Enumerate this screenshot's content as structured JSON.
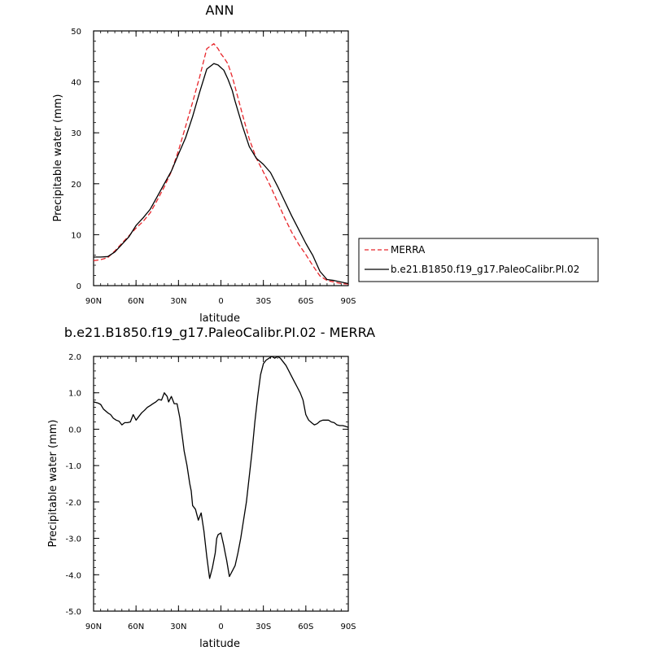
{
  "chart_data": [
    {
      "type": "line",
      "title": "ANN",
      "xlabel": "latitude",
      "ylabel": "Precipitable water (mm)",
      "xlim": [
        90,
        -90
      ],
      "ylim": [
        0,
        50
      ],
      "xticks": [
        90,
        60,
        30,
        0,
        -30,
        -60,
        -90
      ],
      "xtick_labels": [
        "90N",
        "60N",
        "30N",
        "0",
        "30S",
        "60S",
        "90S"
      ],
      "yticks": [
        0,
        10,
        20,
        30,
        40,
        50
      ],
      "ytick_labels": [
        "0",
        "10",
        "20",
        "30",
        "40",
        "50"
      ],
      "legend": {
        "placement": "right",
        "entries": [
          "MERRA",
          "b.e21.B1850.f19_g17.PaleoCalibr.PI.02"
        ]
      },
      "series": [
        {
          "name": "MERRA",
          "color": "#e8262b",
          "dash": "dashed",
          "x": [
            90,
            85,
            80,
            75,
            70,
            65,
            60,
            55,
            50,
            45,
            40,
            35,
            30,
            25,
            20,
            15,
            10,
            5,
            2,
            0,
            -2,
            -5,
            -8,
            -10,
            -15,
            -20,
            -25,
            -30,
            -35,
            -40,
            -45,
            -50,
            -55,
            -60,
            -65,
            -70,
            -75,
            -80,
            -85,
            -90
          ],
          "y": [
            4.9,
            5.1,
            5.5,
            6.8,
            8.3,
            9.8,
            11.3,
            12.6,
            14.3,
            16.8,
            19.4,
            22.4,
            26.5,
            31.2,
            36.0,
            41.0,
            46.5,
            47.5,
            46.5,
            45.5,
            44.8,
            43.5,
            41.0,
            39.0,
            33.8,
            28.8,
            25.0,
            22.3,
            19.5,
            16.4,
            13.3,
            10.5,
            8.1,
            6.1,
            3.9,
            1.9,
            1.0,
            0.7,
            0.4,
            0.3
          ]
        },
        {
          "name": "b.e21.B1850.f19_g17.PaleoCalibr.PI.02",
          "color": "#000000",
          "dash": "solid",
          "x": [
            90,
            85,
            80,
            75,
            70,
            65,
            60,
            55,
            50,
            45,
            40,
            35,
            30,
            25,
            20,
            15,
            10,
            5,
            2,
            0,
            -2,
            -5,
            -8,
            -10,
            -15,
            -20,
            -25,
            -30,
            -35,
            -40,
            -45,
            -50,
            -55,
            -60,
            -65,
            -70,
            -75,
            -80,
            -85,
            -90
          ],
          "y": [
            5.6,
            5.6,
            5.7,
            6.6,
            8.1,
            9.6,
            11.8,
            13.3,
            15.0,
            17.5,
            20.0,
            22.5,
            25.8,
            29.0,
            33.2,
            38.0,
            42.5,
            43.6,
            43.3,
            42.8,
            42.3,
            40.5,
            38.3,
            36.2,
            31.5,
            27.3,
            25.0,
            23.8,
            22.2,
            19.5,
            16.6,
            13.7,
            11.0,
            8.3,
            5.9,
            2.8,
            1.2,
            1.0,
            0.7,
            0.4
          ]
        }
      ]
    },
    {
      "type": "line",
      "title": "b.e21.B1850.f19_g17.PaleoCalibr.PI.02 - MERRA",
      "xlabel": "latitude",
      "ylabel": "Precipitable water (mm)",
      "xlim": [
        90,
        -90
      ],
      "ylim": [
        -5,
        2
      ],
      "xticks": [
        90,
        60,
        30,
        0,
        -30,
        -60,
        -90
      ],
      "xtick_labels": [
        "90N",
        "60N",
        "30N",
        "0",
        "30S",
        "60S",
        "90S"
      ],
      "yticks": [
        -5,
        -4,
        -3,
        -2,
        -1,
        0,
        1,
        2
      ],
      "ytick_labels": [
        "-5.0",
        "-4.0",
        "-3.0",
        "-2.0",
        "-1.0",
        "0.0",
        "1.0",
        "2.0"
      ],
      "series": [
        {
          "name": "",
          "color": "#000000",
          "dash": "solid",
          "x": [
            90,
            87,
            85,
            83,
            80,
            78,
            76,
            74,
            72,
            70,
            68,
            66,
            64,
            62,
            60,
            58,
            56,
            54,
            52,
            50,
            48,
            46,
            44,
            42,
            40,
            38,
            37,
            35,
            33,
            31,
            29,
            28,
            27,
            26,
            24,
            22,
            21,
            20,
            18,
            16,
            14,
            12,
            10,
            8,
            6,
            5,
            4,
            3,
            2,
            0,
            -2,
            -3,
            -4,
            -6,
            -8,
            -10,
            -12,
            -14,
            -16,
            -18,
            -20,
            -22,
            -24,
            -26,
            -28,
            -30,
            -32,
            -34,
            -36,
            -38,
            -40,
            -42,
            -44,
            -46,
            -48,
            -50,
            -52,
            -54,
            -56,
            -58,
            -60,
            -62,
            -64,
            -66,
            -68,
            -70,
            -72,
            -74,
            -76,
            -78,
            -80,
            -82,
            -84,
            -86,
            -88,
            -90
          ],
          "y": [
            0.75,
            0.72,
            0.68,
            0.55,
            0.45,
            0.4,
            0.3,
            0.25,
            0.22,
            0.12,
            0.18,
            0.18,
            0.2,
            0.4,
            0.25,
            0.35,
            0.45,
            0.52,
            0.6,
            0.65,
            0.7,
            0.75,
            0.82,
            0.8,
            1.0,
            0.9,
            0.75,
            0.9,
            0.7,
            0.7,
            0.3,
            0.0,
            -0.3,
            -0.6,
            -1.0,
            -1.5,
            -1.7,
            -2.1,
            -2.2,
            -2.5,
            -2.3,
            -2.8,
            -3.5,
            -4.1,
            -3.8,
            -3.6,
            -3.4,
            -3.0,
            -2.9,
            -2.85,
            -3.2,
            -3.4,
            -3.6,
            -4.05,
            -3.9,
            -3.75,
            -3.4,
            -3.0,
            -2.5,
            -2.0,
            -1.3,
            -0.6,
            0.2,
            0.9,
            1.5,
            1.8,
            1.9,
            1.95,
            2.0,
            1.95,
            2.0,
            1.95,
            1.85,
            1.75,
            1.6,
            1.45,
            1.3,
            1.15,
            1.0,
            0.8,
            0.4,
            0.25,
            0.18,
            0.12,
            0.15,
            0.22,
            0.25,
            0.25,
            0.25,
            0.2,
            0.18,
            0.12,
            0.1,
            0.1,
            0.08,
            0.05
          ]
        }
      ]
    }
  ]
}
